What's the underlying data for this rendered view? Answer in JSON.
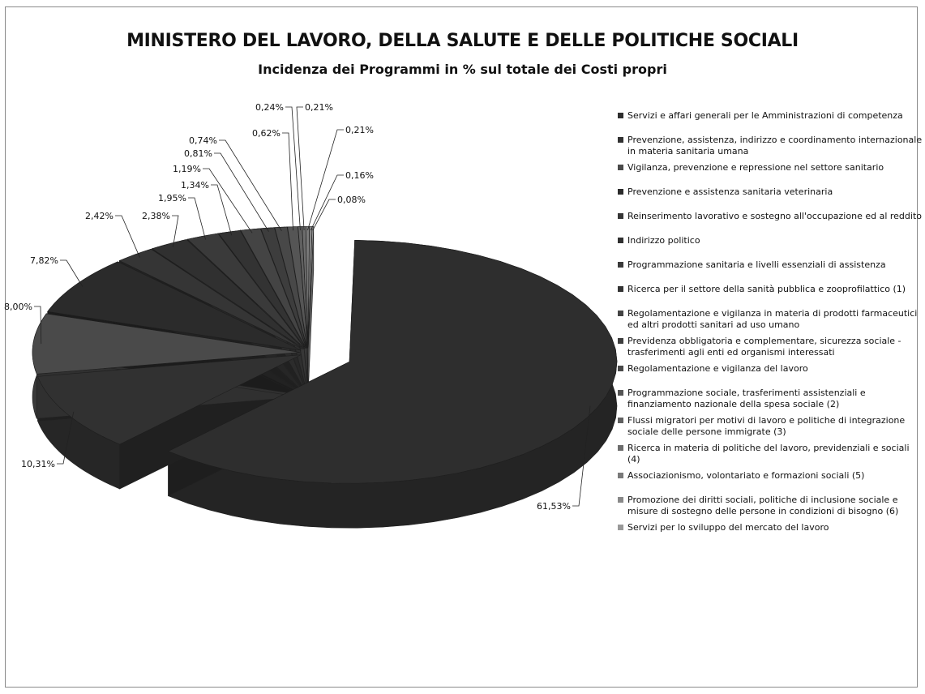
{
  "page": {
    "title": "MINISTERO DEL LAVORO, DELLA SALUTE E DELLE POLITICHE SOCIALI",
    "subtitle": "Incidenza dei Programmi in % sul totale dei Costi propri"
  },
  "chart_data": {
    "type": "pie",
    "title": "MINISTERO DEL LAVORO, DELLA SALUTE E DELLE POLITICHE SOCIALI",
    "subtitle": "Incidenza dei Programmi in % sul totale dei Costi propri",
    "legend_position": "right",
    "categories": [
      "Servizi e affari generali per le Amministrazioni di competenza",
      "Prevenzione, assistenza, indirizzo e coordinamento internazionale in materia sanitaria umana",
      "Vigilanza, prevenzione e repressione nel settore sanitario",
      "Prevenzione e assistenza sanitaria veterinaria",
      "Reinserimento lavorativo e sostegno all'occupazione ed al reddito",
      "Indirizzo politico",
      "Programmazione sanitaria e livelli essenziali di assistenza",
      "Ricerca per il settore della sanità pubblica e zooprofilattico (1)",
      "Regolamentazione e vigilanza in materia di prodotti farmaceutici ed altri prodotti sanitari ad uso umano",
      "Previdenza obbligatoria e complementare, sicurezza sociale - trasferimenti agli enti ed organismi interessati",
      "Regolamentazione e vigilanza del lavoro",
      "Programmazione sociale, trasferimenti assistenziali e finanziamento nazionale della spesa sociale (2)",
      "Flussi migratori per motivi di lavoro e politiche di integrazione sociale delle persone immigrate (3)",
      "Ricerca in materia di politiche del lavoro, previdenziali e sociali (4)",
      "Associazionismo, volontariato e formazioni sociali (5)",
      "Promozione dei diritti sociali, politiche di inclusione sociale e misure di sostegno delle persone in condizioni di bisogno (6)",
      "Servizi per lo sviluppo del mercato del lavoro"
    ],
    "values": [
      61.53,
      10.31,
      8.0,
      7.82,
      2.42,
      2.38,
      1.95,
      1.34,
      1.19,
      0.81,
      0.74,
      0.62,
      0.24,
      0.21,
      0.21,
      0.16,
      0.08
    ],
    "data_labels": [
      "61,53%",
      "10,31%",
      "8,00%",
      "7,82%",
      "2,42%",
      "2,38%",
      "1,95%",
      "1,34%",
      "1,19%",
      "0,81%",
      "0,74%",
      "0,62%",
      "0,24%",
      "0,21%",
      "0,21%",
      "0,16%",
      "0,08%"
    ],
    "colors": [
      "#2e2e2e",
      "#313131",
      "#4a4a4a",
      "#2b2b2b",
      "#353535",
      "#303030",
      "#3a3a3a",
      "#333333",
      "#444444",
      "#3d3d3d",
      "#484848",
      "#555555",
      "#606060",
      "#6d6d6d",
      "#7a7a7a",
      "#888888",
      "#999999"
    ]
  }
}
